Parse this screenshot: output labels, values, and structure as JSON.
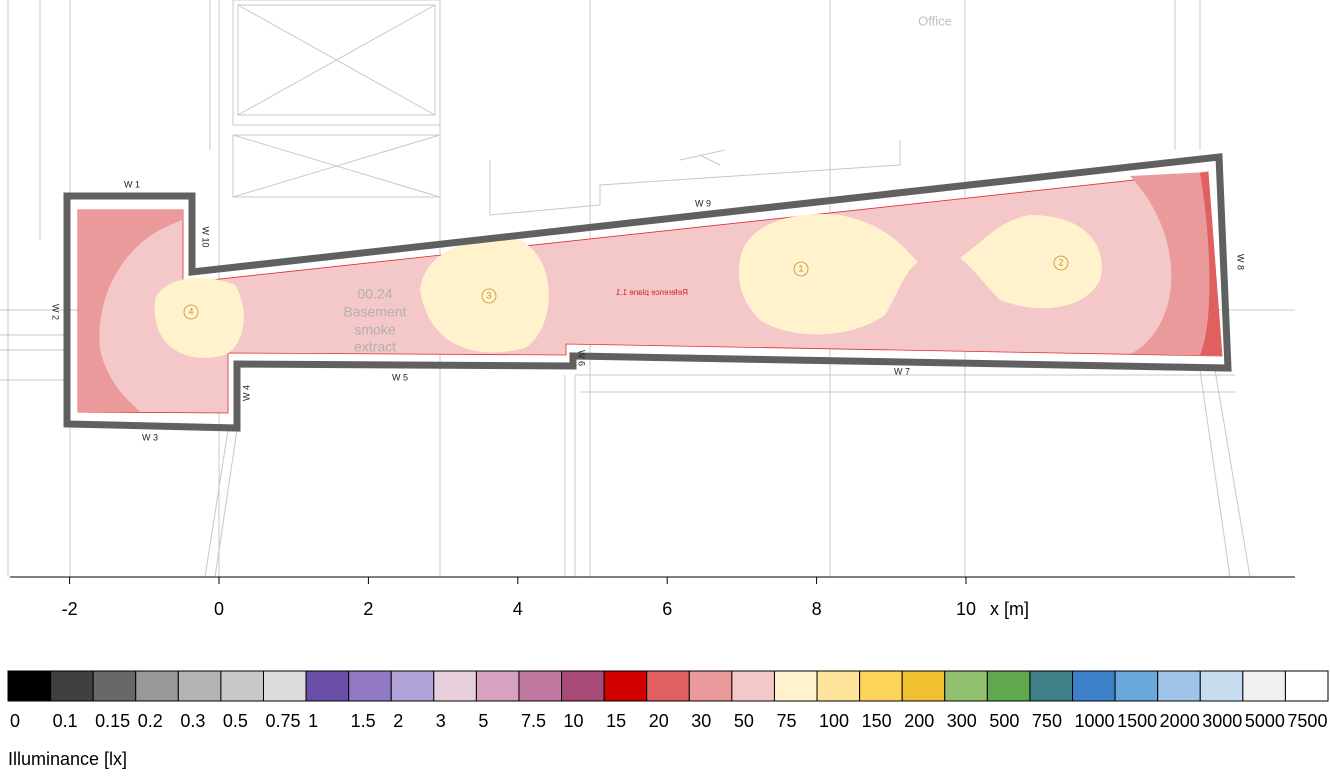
{
  "plan": {
    "office_label": "Office",
    "room": {
      "number": "00.24",
      "name_lines": [
        "Basement",
        "smoke",
        "extract"
      ]
    },
    "reference_plane": "Reference plane 1.1",
    "walls": [
      "W 1",
      "W 2",
      "W 3",
      "W 4",
      "W 5",
      "W 6",
      "W 7",
      "W 8",
      "W 9",
      "W 10"
    ],
    "luminaires": [
      "1",
      "2",
      "3",
      "4"
    ]
  },
  "axis": {
    "ticks": [
      -2,
      0,
      2,
      4,
      6,
      8,
      10
    ],
    "label": "x [m]"
  },
  "legend": {
    "title": "Illuminance [lx]",
    "values": [
      0,
      0.1,
      0.15,
      0.2,
      0.3,
      0.5,
      0.75,
      1,
      1.5,
      2,
      3,
      5,
      7.5,
      10,
      15,
      20,
      30,
      50,
      75,
      100,
      150,
      200,
      300,
      500,
      750,
      1000,
      1500,
      2000,
      3000,
      5000,
      7500
    ],
    "colors": [
      "#000000",
      "#404040",
      "#686868",
      "#989898",
      "#b4b4b4",
      "#c8c8c8",
      "#dcdcdc",
      "#6a4ea8",
      "#9078c4",
      "#b2a4d8",
      "#e8cfde",
      "#d6a2c0",
      "#c07aa2",
      "#a84a78",
      "#d00000",
      "#e06060",
      "#ea9a9a",
      "#f4c8c8",
      "#fff2cc",
      "#fde49a",
      "#fcd45a",
      "#f0c030",
      "#90c070",
      "#60a850",
      "#408088",
      "#3c80c8",
      "#6aa8dc",
      "#a0c4e8",
      "#c8dcf0",
      "#f0f0f0",
      "#ffffff"
    ]
  }
}
